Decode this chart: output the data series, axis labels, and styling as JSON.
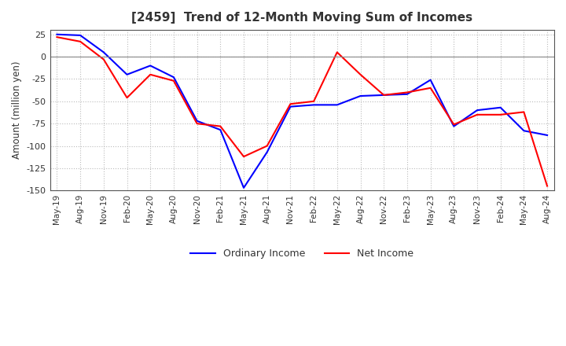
{
  "title": "[2459]  Trend of 12-Month Moving Sum of Incomes",
  "ylabel": "Amount (million yen)",
  "x_labels": [
    "May-19",
    "Aug-19",
    "Nov-19",
    "Feb-20",
    "May-20",
    "Aug-20",
    "Nov-20",
    "Feb-21",
    "May-21",
    "Aug-21",
    "Nov-21",
    "Feb-22",
    "May-22",
    "Aug-22",
    "Nov-22",
    "Feb-23",
    "May-23",
    "Aug-23",
    "Nov-23",
    "Feb-24",
    "May-24",
    "Aug-24"
  ],
  "ordinary_income": [
    25,
    24,
    5,
    -20,
    -10,
    -23,
    -72,
    -82,
    -147,
    -107,
    -56,
    -54,
    -54,
    -44,
    -43,
    -42,
    -26,
    -78,
    -60,
    -57,
    -83,
    -88
  ],
  "net_income": [
    22,
    17,
    -3,
    -46,
    -20,
    -27,
    -75,
    -78,
    -112,
    -100,
    -53,
    -50,
    5,
    -20,
    -43,
    -40,
    -35,
    -76,
    -65,
    -65,
    -62,
    -145
  ],
  "ordinary_color": "#0000ff",
  "net_color": "#ff0000",
  "ylim": [
    -150,
    30
  ],
  "yticks": [
    25,
    0,
    -25,
    -50,
    -75,
    -100,
    -125,
    -150
  ],
  "background_color": "#ffffff",
  "grid_color": "#bbbbbb",
  "title_color": "#333333",
  "legend_labels": [
    "Ordinary Income",
    "Net Income"
  ]
}
